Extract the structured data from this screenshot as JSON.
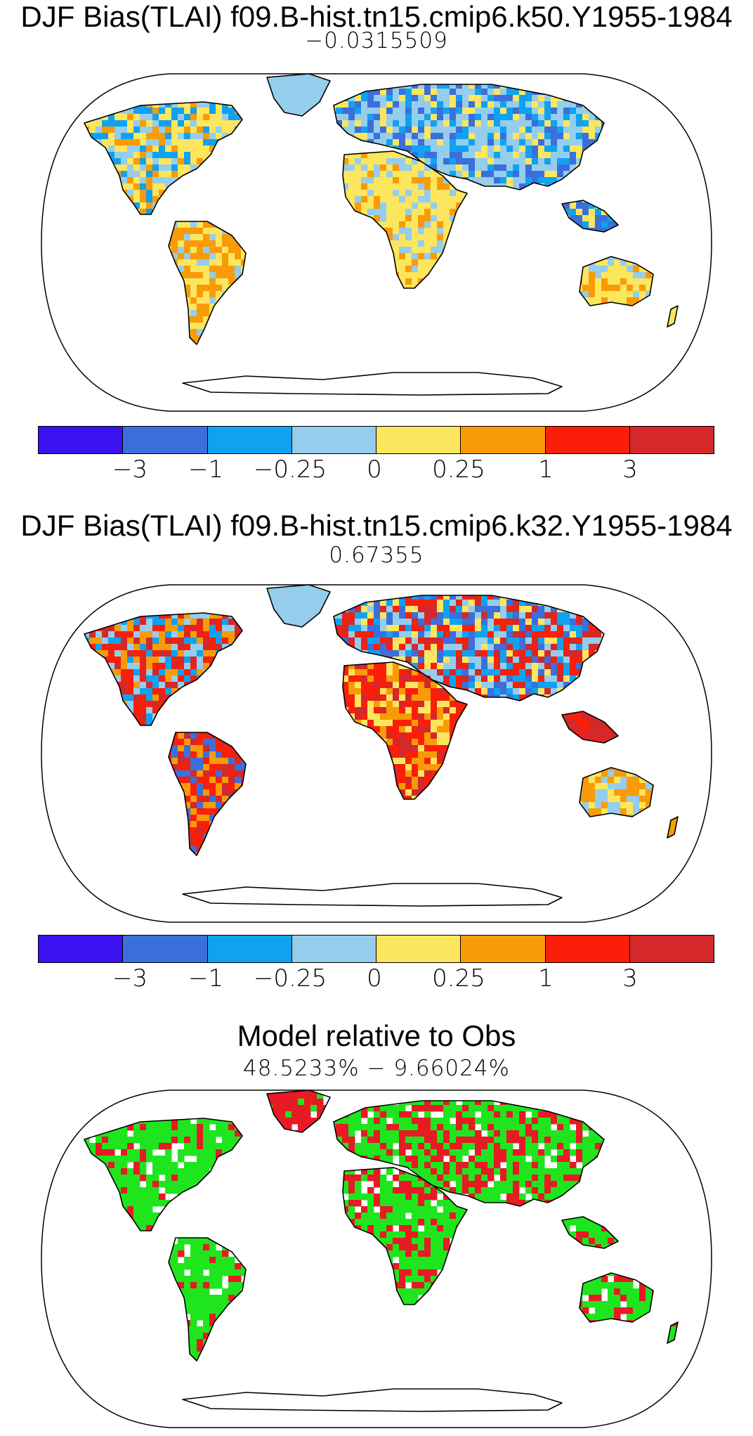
{
  "panels": [
    {
      "title": "DJF Bias(TLAI) f09.B-hist.tn15.cmip6.k50.Y1955-1984",
      "subtitle": "−0.0315509",
      "pattern": "k50"
    },
    {
      "title": "DJF Bias(TLAI) f09.B-hist.tn15.cmip6.k32.Y1955-1984",
      "subtitle": "0.67355",
      "pattern": "k32"
    },
    {
      "title": "Model relative to Obs",
      "subtitle": "48.5233% − 9.66024%",
      "pattern": "rel"
    }
  ],
  "colorbar": {
    "colors": [
      "#3c12f2",
      "#3b6fdc",
      "#10a2f0",
      "#95cdec",
      "#fbe65e",
      "#f99b06",
      "#fb1e09",
      "#d4282b"
    ],
    "labels": [
      "−3",
      "−1",
      "−0.25",
      "0",
      "0.25",
      "1",
      "3"
    ]
  },
  "relative_colors": {
    "model_better": "#1fe51f",
    "model_worse": "#e81a23"
  }
}
